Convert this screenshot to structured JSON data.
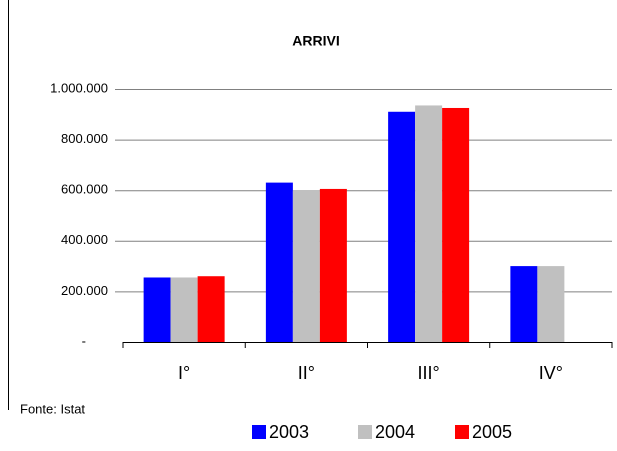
{
  "chart_data": {
    "type": "bar",
    "title": "ARRIVI",
    "source": "Fonte: Istat",
    "categories": [
      "I°",
      "II°",
      "III°",
      "IV°"
    ],
    "series": [
      {
        "name": "2003",
        "color": "#0000ff",
        "values": [
          255000,
          630000,
          910000,
          300000
        ]
      },
      {
        "name": "2004",
        "color": "#c0c0c0",
        "values": [
          255000,
          600000,
          935000,
          300000
        ]
      },
      {
        "name": "2005",
        "color": "#ff0000",
        "values": [
          260000,
          605000,
          925000,
          null
        ]
      }
    ],
    "ylim": [
      0,
      1000000
    ],
    "yticks": [
      {
        "value": 0,
        "label": "-"
      },
      {
        "value": 200000,
        "label": "200.000"
      },
      {
        "value": 400000,
        "label": "400.000"
      },
      {
        "value": 600000,
        "label": "600.000"
      },
      {
        "value": 800000,
        "label": "800.000"
      },
      {
        "value": 1000000,
        "label": "1.000.000"
      }
    ],
    "grid": true,
    "legend": "bottom"
  }
}
